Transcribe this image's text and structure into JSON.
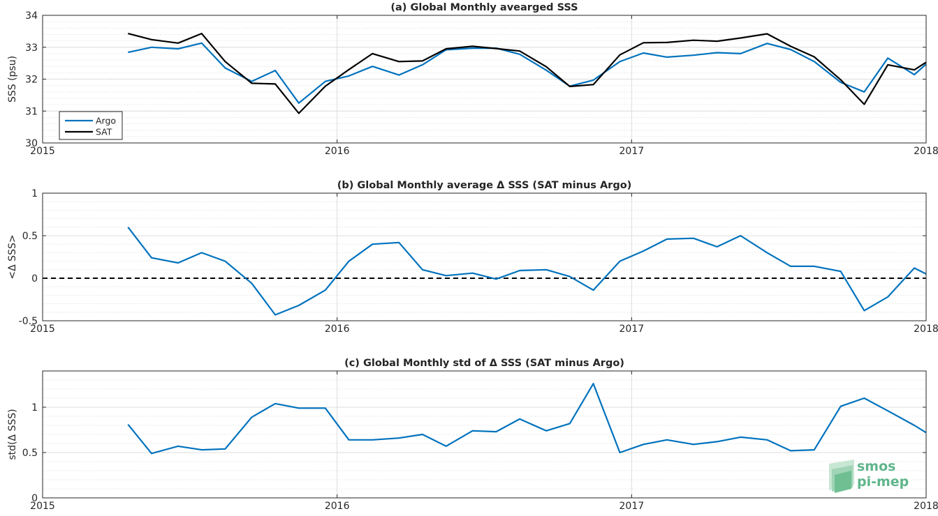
{
  "logo": {
    "line1": "smos",
    "line2": "pi-mep"
  },
  "colors": {
    "argo": "#0072bd",
    "sat": "#000000",
    "zero_line": "#000000"
  },
  "chart_data": [
    {
      "type": "line",
      "title": "(a) Global Monthly avearged SSS",
      "xlabel": "",
      "ylabel": "SSS (psu)",
      "xlim": [
        2015,
        2018
      ],
      "ylim": [
        30,
        34
      ],
      "xticks": [
        2015,
        2016,
        2017,
        2018
      ],
      "xtick_labels": [
        "2015",
        "2016",
        "2017",
        "2018"
      ],
      "yticks": [
        30,
        31,
        32,
        33,
        34
      ],
      "ytick_labels": [
        "30",
        "31",
        "32",
        "33",
        "34"
      ],
      "grid": true,
      "legend": {
        "position": "bottom-left",
        "labels": [
          "Argo",
          "SAT"
        ]
      },
      "x": [
        2015.29,
        2015.37,
        2015.46,
        2015.54,
        2015.62,
        2015.71,
        2015.79,
        2015.87,
        2015.96,
        2016.04,
        2016.12,
        2016.21,
        2016.29,
        2016.37,
        2016.46,
        2016.54,
        2016.62,
        2016.71,
        2016.79,
        2016.87,
        2016.96,
        2017.04,
        2017.12,
        2017.21,
        2017.29,
        2017.37,
        2017.46,
        2017.54,
        2017.62,
        2017.71,
        2017.79,
        2017.87,
        2017.96,
        2018.0
      ],
      "series": [
        {
          "name": "Argo",
          "values": [
            32.84,
            33.0,
            32.95,
            33.13,
            32.35,
            31.93,
            32.27,
            31.25,
            31.93,
            32.1,
            32.4,
            32.13,
            32.45,
            32.92,
            32.97,
            32.97,
            32.78,
            32.28,
            31.78,
            31.97,
            32.55,
            32.82,
            32.69,
            32.75,
            32.83,
            32.8,
            33.12,
            32.93,
            32.55,
            31.9,
            31.6,
            32.66,
            32.14,
            32.47
          ]
        },
        {
          "name": "SAT",
          "values": [
            33.43,
            33.24,
            33.13,
            33.43,
            32.55,
            31.87,
            31.85,
            30.93,
            31.78,
            32.3,
            32.8,
            32.55,
            32.57,
            32.95,
            33.03,
            32.96,
            32.88,
            32.39,
            31.77,
            31.83,
            32.76,
            33.14,
            33.15,
            33.22,
            33.19,
            33.29,
            33.42,
            33.03,
            32.7,
            31.98,
            31.21,
            32.45,
            32.29,
            32.53
          ]
        }
      ]
    },
    {
      "type": "line",
      "title": "(b) Global Monthly average Δ SSS (SAT minus Argo)",
      "xlabel": "",
      "ylabel": "<Δ SSS>",
      "xlim": [
        2015,
        2018
      ],
      "ylim": [
        -0.5,
        1
      ],
      "xticks": [
        2015,
        2016,
        2017,
        2018
      ],
      "xtick_labels": [
        "2015",
        "2016",
        "2017",
        "2018"
      ],
      "yticks": [
        -0.5,
        0,
        0.5,
        1
      ],
      "ytick_labels": [
        "-0.5",
        "0",
        "0.5",
        "1"
      ],
      "grid": true,
      "reference_line": 0,
      "x": [
        2015.29,
        2015.37,
        2015.46,
        2015.54,
        2015.62,
        2015.71,
        2015.79,
        2015.87,
        2015.96,
        2016.04,
        2016.12,
        2016.21,
        2016.29,
        2016.37,
        2016.46,
        2016.54,
        2016.62,
        2016.71,
        2016.79,
        2016.87,
        2016.96,
        2017.04,
        2017.12,
        2017.21,
        2017.29,
        2017.37,
        2017.46,
        2017.54,
        2017.62,
        2017.71,
        2017.79,
        2017.87,
        2017.96,
        2018.0
      ],
      "series": [
        {
          "name": "",
          "values": [
            0.6,
            0.24,
            0.18,
            0.3,
            0.2,
            -0.06,
            -0.43,
            -0.32,
            -0.14,
            0.2,
            0.4,
            0.42,
            0.1,
            0.03,
            0.06,
            -0.01,
            0.09,
            0.1,
            0.02,
            -0.14,
            0.2,
            0.32,
            0.46,
            0.47,
            0.37,
            0.5,
            0.3,
            0.14,
            0.14,
            0.08,
            -0.38,
            -0.22,
            0.12,
            0.05
          ]
        }
      ]
    },
    {
      "type": "line",
      "title": "(c) Global Monthly std of Δ SSS (SAT minus Argo)",
      "xlabel": "",
      "ylabel": "std(Δ SSS)",
      "xlim": [
        2015,
        2018
      ],
      "ylim": [
        0,
        1.4
      ],
      "xticks": [
        2015,
        2016,
        2017,
        2018
      ],
      "xtick_labels": [
        "2015",
        "2016",
        "2017",
        "2018"
      ],
      "yticks": [
        0,
        0.5,
        1
      ],
      "ytick_labels": [
        "0",
        "0.5",
        "1"
      ],
      "grid": true,
      "x": [
        2015.29,
        2015.37,
        2015.46,
        2015.54,
        2015.62,
        2015.71,
        2015.79,
        2015.87,
        2015.96,
        2016.04,
        2016.12,
        2016.21,
        2016.29,
        2016.37,
        2016.46,
        2016.54,
        2016.62,
        2016.71,
        2016.79,
        2016.87,
        2016.96,
        2017.04,
        2017.12,
        2017.21,
        2017.29,
        2017.37,
        2017.46,
        2017.54,
        2017.62,
        2017.71,
        2017.79,
        2017.87,
        2017.96,
        2018.0
      ],
      "series": [
        {
          "name": "",
          "values": [
            0.81,
            0.49,
            0.57,
            0.53,
            0.54,
            0.89,
            1.04,
            0.99,
            0.99,
            0.64,
            0.64,
            0.66,
            0.7,
            0.57,
            0.74,
            0.73,
            0.87,
            0.74,
            0.82,
            1.26,
            0.5,
            0.59,
            0.64,
            0.59,
            0.62,
            0.67,
            0.64,
            0.52,
            0.53,
            1.01,
            1.1,
            0.96,
            0.8,
            0.72
          ]
        }
      ]
    }
  ]
}
